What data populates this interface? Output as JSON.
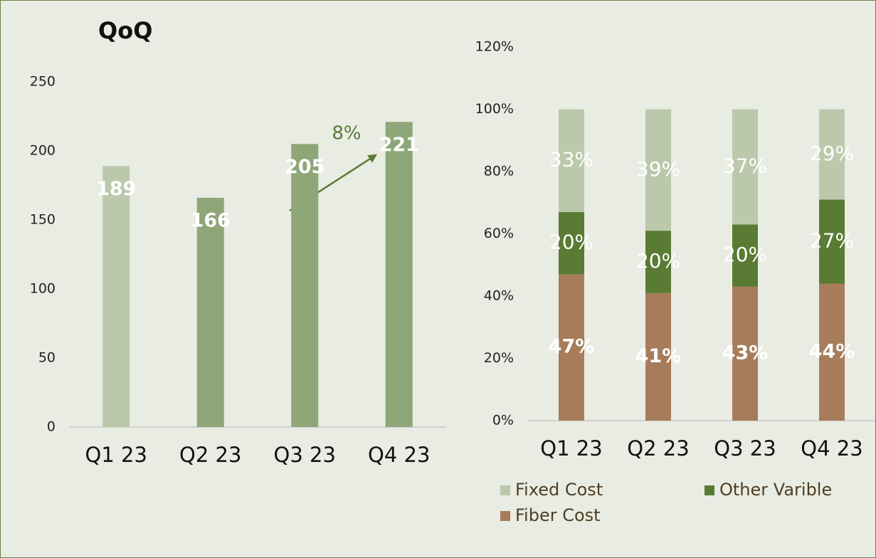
{
  "chart_data": [
    {
      "type": "bar",
      "title": "QoQ",
      "categories": [
        "Q1 23",
        "Q2 23",
        "Q3 23",
        "Q4 23"
      ],
      "values": [
        189,
        166,
        205,
        221
      ],
      "colors": [
        "#bcc8ab",
        "#8ea678",
        "#8ea678",
        "#8ea678"
      ],
      "ylim": [
        0,
        250
      ],
      "yticks": [
        0,
        50,
        100,
        150,
        200,
        250
      ],
      "annotation": "8%"
    },
    {
      "type": "stacked_bar",
      "categories": [
        "Q1 23",
        "Q2 23",
        "Q3 23",
        "Q4 23"
      ],
      "series": [
        {
          "name": "Fiber Cost",
          "color": "#a67c5a",
          "values": [
            47,
            41,
            43,
            44
          ],
          "value_labels": [
            "47%",
            "41%",
            "43%",
            "44%"
          ]
        },
        {
          "name": "Other Varible",
          "color": "#597b33",
          "values": [
            20,
            20,
            20,
            27
          ],
          "value_labels": [
            "20%",
            "20%",
            "20%",
            "27%"
          ]
        },
        {
          "name": "Fixed Cost",
          "color": "#bcc8ab",
          "values": [
            33,
            39,
            37,
            29
          ],
          "value_labels": [
            "33%",
            "39%",
            "37%",
            "29%"
          ]
        }
      ],
      "ylim": [
        0,
        120
      ],
      "yticks": [
        {
          "value": 0,
          "label": "0%"
        },
        {
          "value": 20,
          "label": "20%"
        },
        {
          "value": 40,
          "label": "40%"
        },
        {
          "value": 60,
          "label": "60%"
        },
        {
          "value": 80,
          "label": "80%"
        },
        {
          "value": 100,
          "label": "100%"
        },
        {
          "value": 120,
          "label": "120%"
        }
      ]
    }
  ]
}
